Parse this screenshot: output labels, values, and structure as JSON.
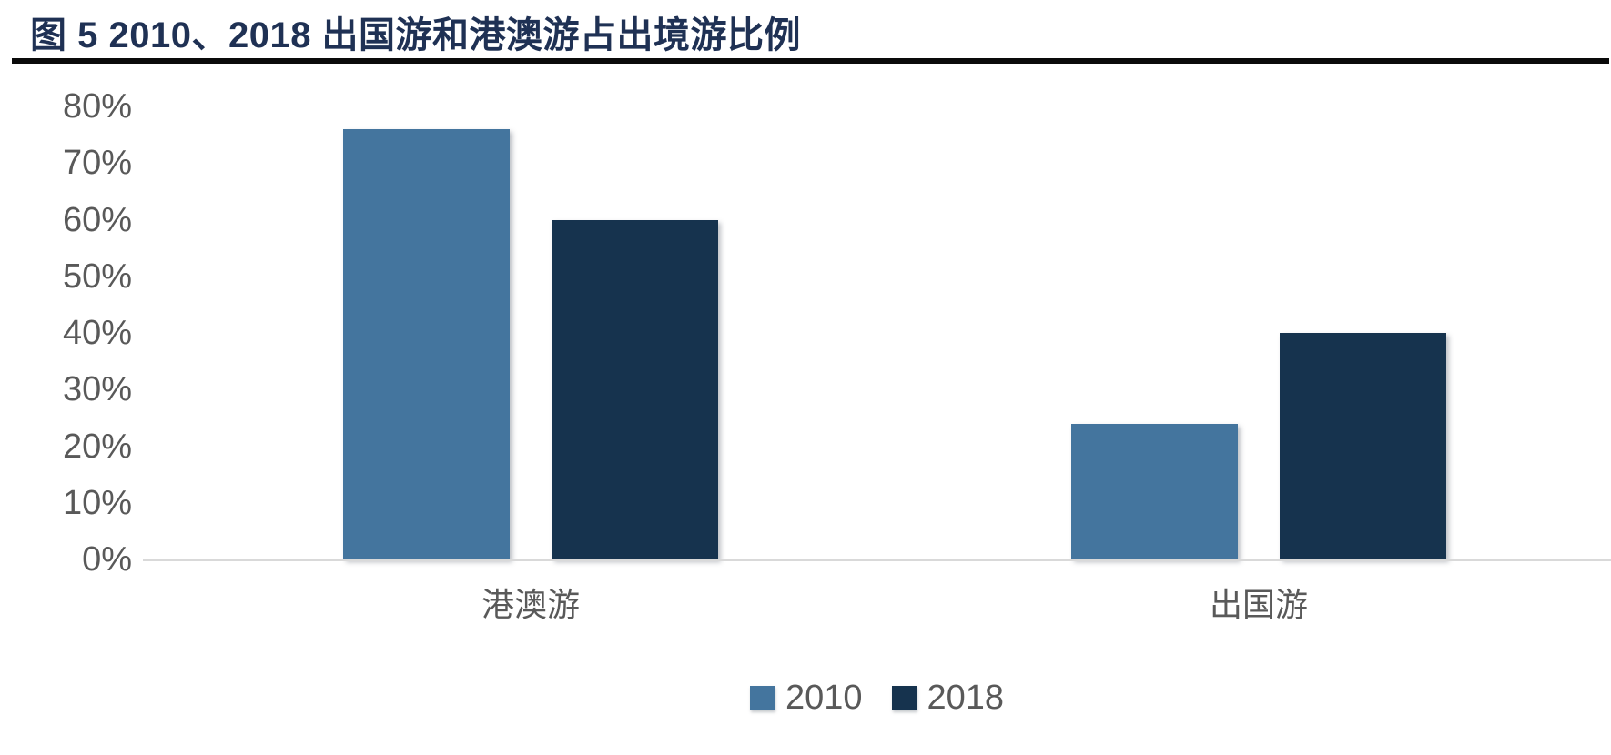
{
  "title": {
    "text": "图 5 2010、2018 出国游和港澳游占出境游比例"
  },
  "chart_data": {
    "type": "bar",
    "title": "图 5 2010、2018 出国游和港澳游占出境游比例",
    "categories": [
      "港澳游",
      "出国游"
    ],
    "series": [
      {
        "name": "2010",
        "color": "#44759E",
        "values": [
          76,
          24
        ]
      },
      {
        "name": "2018",
        "color": "#16334E",
        "values": [
          60,
          40
        ]
      }
    ],
    "value_unit": "%",
    "xlabel": "",
    "ylabel": "",
    "ylim": [
      0,
      80
    ],
    "y_ticks": [
      "0%",
      "10%",
      "20%",
      "30%",
      "40%",
      "50%",
      "60%",
      "70%",
      "80%"
    ],
    "grid": false,
    "legend_position": "bottom",
    "legend_entries": [
      "2010",
      "2018"
    ],
    "colors": {
      "title_text": "#1F3154",
      "title_rule": "#0A0A0A",
      "axis_line": "#D9D9D9",
      "tick_label": "#595959",
      "category_label": "#595959",
      "legend_label": "#595959",
      "series_2010": "#44759E",
      "series_2018": "#16334E"
    }
  }
}
